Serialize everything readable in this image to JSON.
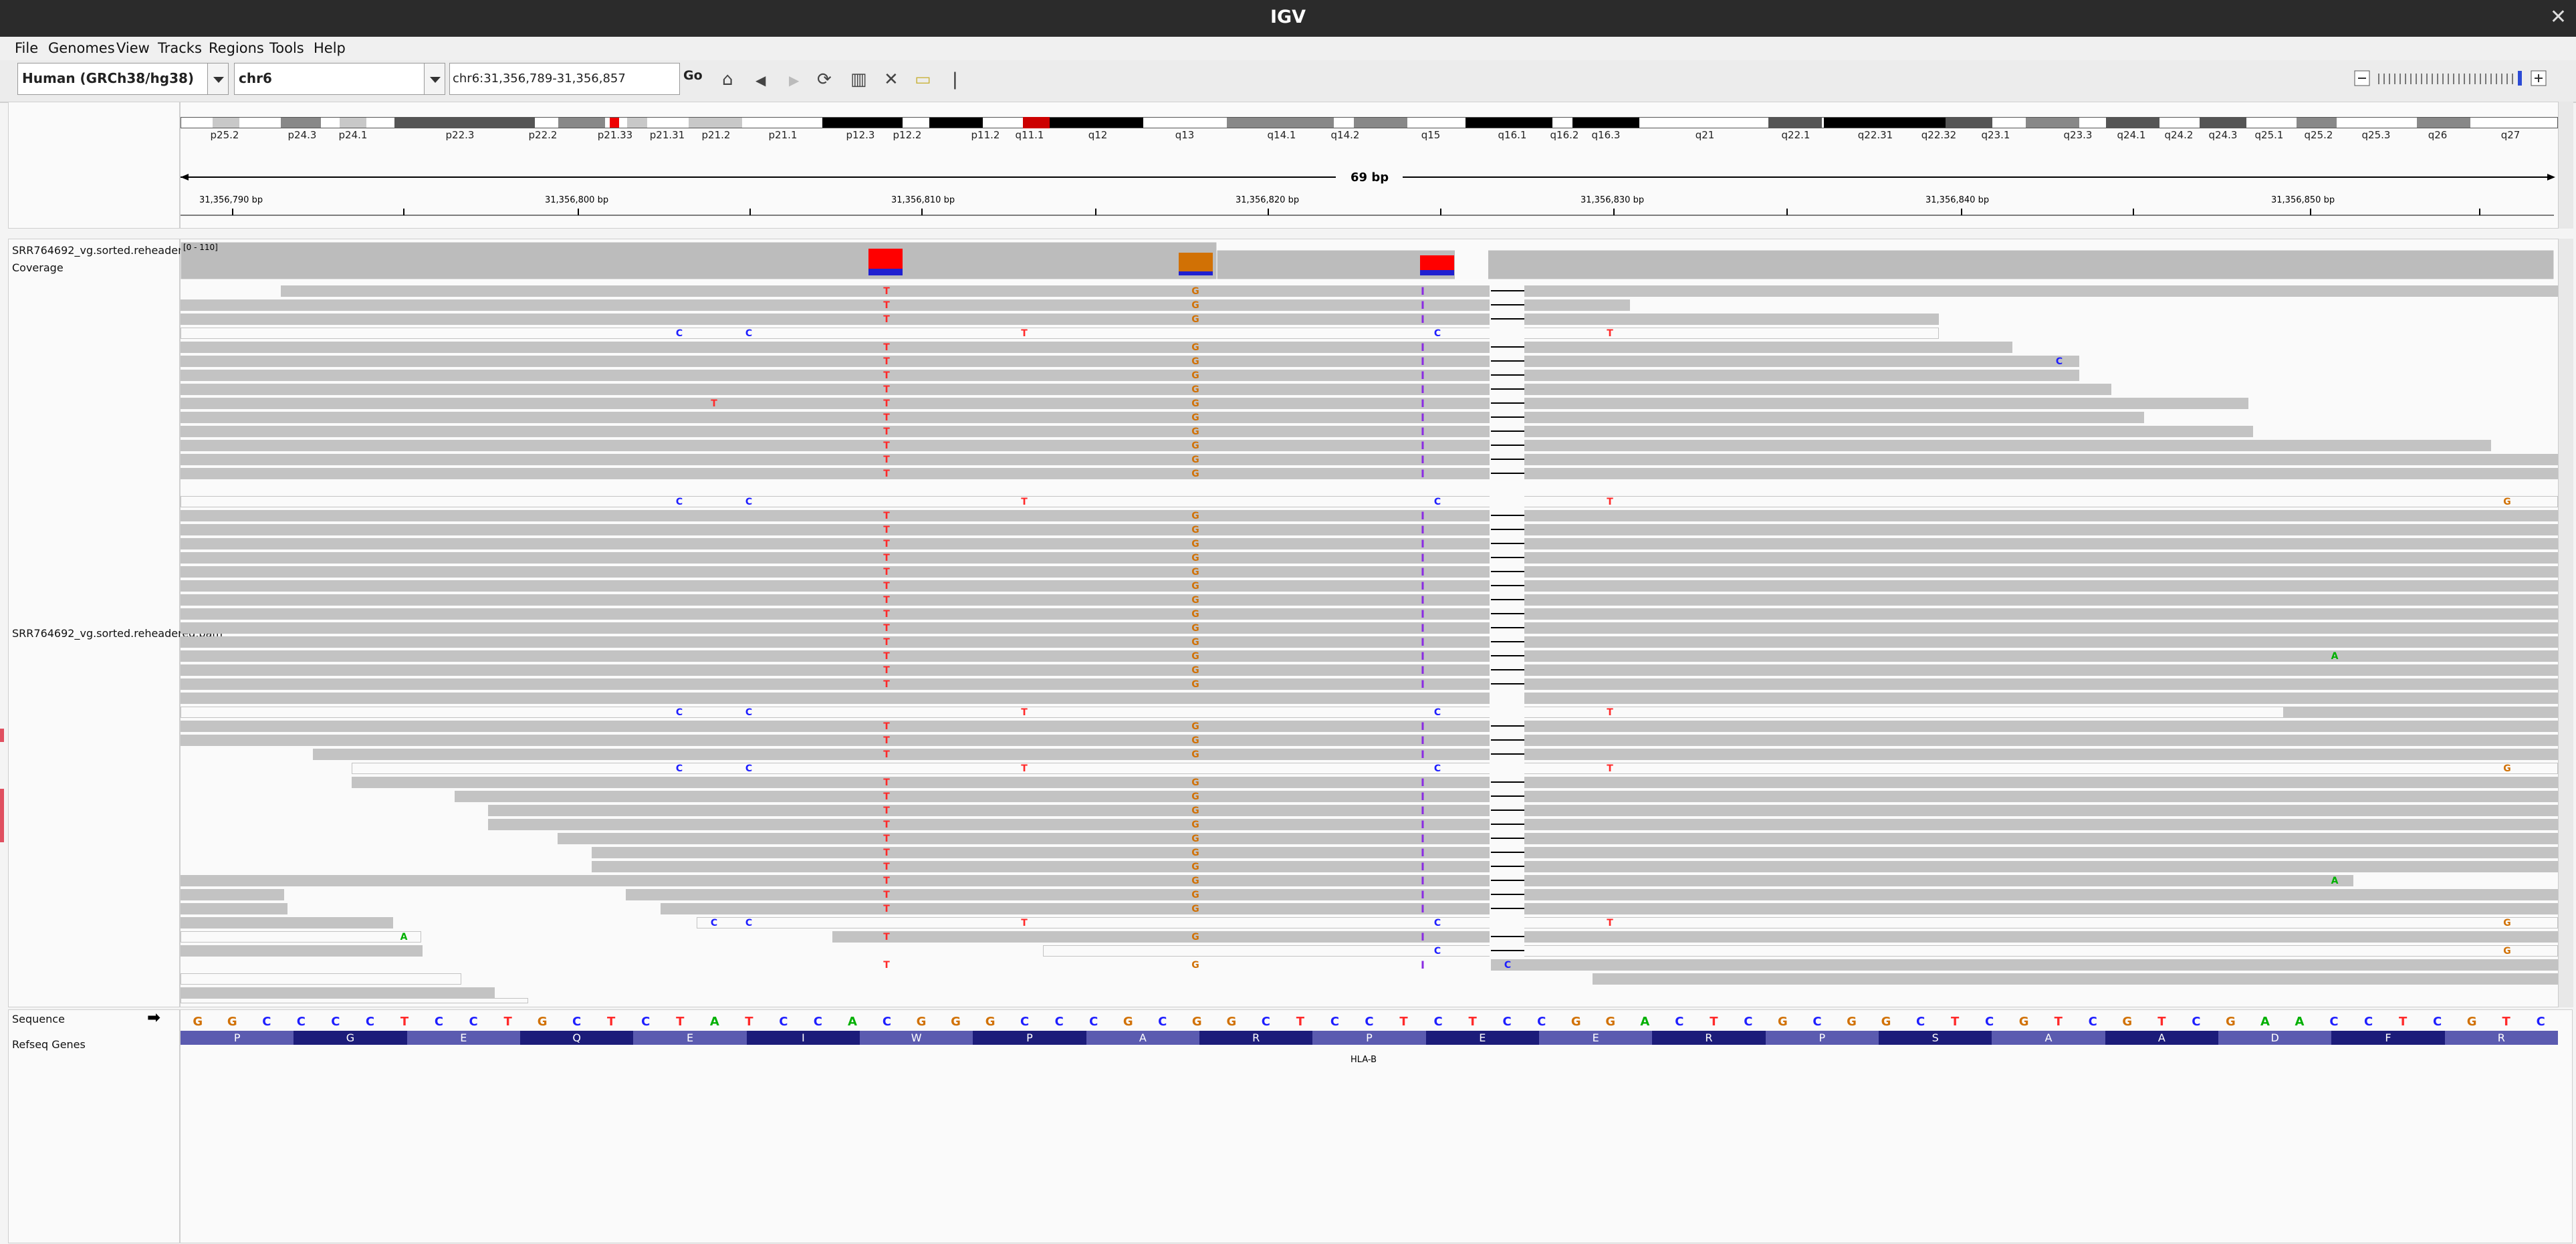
{
  "window": {
    "title": "IGV",
    "close_label": "✕"
  },
  "menu": {
    "items": [
      "File",
      "Genomes",
      "View",
      "Tracks",
      "Regions",
      "Tools",
      "Help"
    ]
  },
  "toolbar": {
    "genome": "Human (GRCh38/hg38)",
    "chromosome": "chr6",
    "locus": "chr6:31,356,789-31,356,857",
    "go_label": "Go"
  },
  "ideogram": {
    "bands": [
      "p25.2",
      "p24.3",
      "p24.1",
      "p22.3",
      "p22.2",
      "p21.33",
      "p21.31",
      "p21.2",
      "p21.1",
      "p12.3",
      "p12.2",
      "p11.2",
      "q11.1",
      "q12",
      "q13",
      "q14.1",
      "q14.2",
      "q15",
      "q16.1",
      "q16.2",
      "q16.3",
      "q21",
      "q22.1",
      "q22.31",
      "q22.32",
      "q23.1",
      "q23.3",
      "q24.1",
      "q24.2",
      "q24.3",
      "q25.1",
      "q25.2",
      "q25.3",
      "q26",
      "q27"
    ]
  },
  "ruler": {
    "span_label": "69 bp",
    "ticks": [
      "31,356,790 bp",
      "31,356,800 bp",
      "31,356,810 bp",
      "31,356,820 bp",
      "31,356,830 bp",
      "31,356,840 bp",
      "31,356,850 bp"
    ]
  },
  "tracks": {
    "coverage_label": "SRR764692_vg.sorted.reheadered.bam Coverage",
    "coverage_range": "[0 - 110]",
    "alignment_label": "SRR764692_vg.sorted.reheadered.bam",
    "sequence_label": "Sequence",
    "refseq_label": "Refseq Genes",
    "gene_name": "HLA-B"
  },
  "sequence": [
    "G",
    "G",
    "C",
    "C",
    "C",
    "C",
    "T",
    "C",
    "C",
    "T",
    "G",
    "C",
    "T",
    "C",
    "T",
    "A",
    "T",
    "C",
    "C",
    "A",
    "C",
    "G",
    "G",
    "G",
    "C",
    "C",
    "C",
    "G",
    "C",
    "G",
    "G",
    "C",
    "T",
    "C",
    "C",
    "T",
    "C",
    "T",
    "C",
    "C",
    "G",
    "G",
    "A",
    "C",
    "T",
    "C",
    "G",
    "C",
    "G",
    "G",
    "C",
    "T",
    "C",
    "G",
    "T",
    "C",
    "G",
    "T",
    "C",
    "G",
    "A",
    "A",
    "C",
    "C",
    "T",
    "C",
    "G",
    "T",
    "C"
  ],
  "amino_acids": [
    "P",
    "G",
    "E",
    "Q",
    "E",
    "I",
    "W",
    "P",
    "A",
    "R",
    "P",
    "E",
    "E",
    "R",
    "P",
    "S",
    "A",
    "A",
    "D",
    "F",
    "R"
  ],
  "colors": {
    "A": "#00b000",
    "C": "#1e1eff",
    "G": "#d17105",
    "T": "#ff2a2a",
    "insertion": "#8a2be2"
  }
}
